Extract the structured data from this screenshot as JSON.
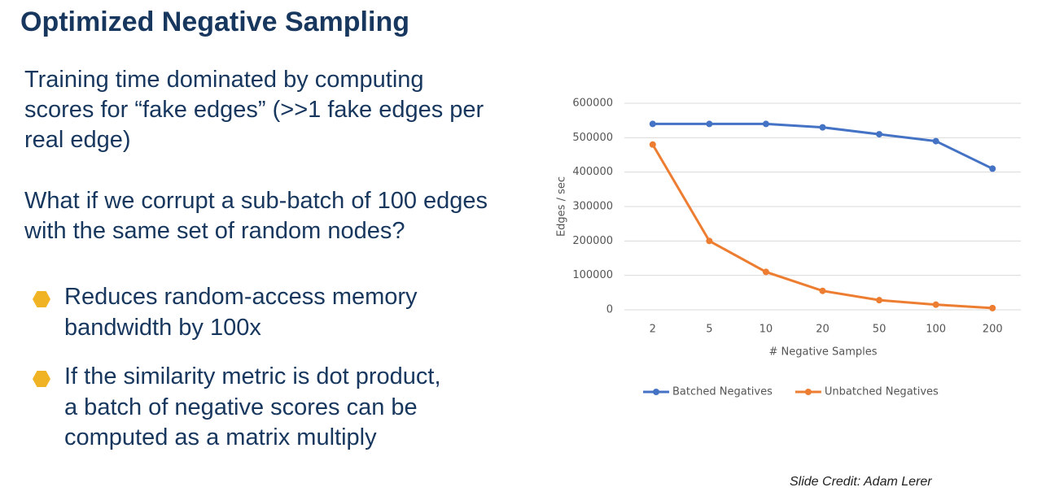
{
  "title": "Optimized Negative Sampling",
  "paragraphs": [
    [
      "Training time dominated by computing",
      "scores for “fake edges” (>>1 fake edges per",
      "real edge)"
    ],
    [
      "What if we corrupt a sub-batch of 100 edges",
      "with the same set of random nodes?"
    ]
  ],
  "bullets": [
    [
      "Reduces random-access memory",
      "bandwidth by 100x"
    ],
    [
      "If the similarity metric is dot product,",
      "a batch of negative scores can be",
      "computed as a matrix multiply"
    ]
  ],
  "credit": "Slide Credit: Adam Lerer",
  "chart_data": {
    "type": "line",
    "x_label": "# Negative Samples",
    "y_label": "Edges / sec",
    "categories": [
      "2",
      "5",
      "10",
      "20",
      "50",
      "100",
      "200"
    ],
    "series": [
      {
        "name": "Batched Negatives",
        "color": "#4472c4",
        "values": [
          540000,
          540000,
          540000,
          530000,
          510000,
          490000,
          410000
        ]
      },
      {
        "name": "Unbatched Negatives",
        "color": "#ed7d31",
        "values": [
          480000,
          200000,
          110000,
          55000,
          28000,
          15000,
          5000
        ]
      }
    ],
    "ylim": [
      0,
      600000
    ],
    "yticks": [
      0,
      100000,
      200000,
      300000,
      400000,
      500000,
      600000
    ],
    "grid": true,
    "legend": "bottom"
  }
}
